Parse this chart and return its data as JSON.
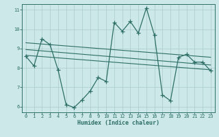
{
  "bg_color": "#cce8e8",
  "line_color": "#2d6e65",
  "grid_color": "#aacccc",
  "xlabel": "Humidex (Indice chaleur)",
  "xlim": [
    -0.5,
    23.5
  ],
  "ylim": [
    5.7,
    11.3
  ],
  "yticks": [
    6,
    7,
    8,
    9,
    10,
    11
  ],
  "xticks": [
    0,
    1,
    2,
    3,
    4,
    5,
    6,
    7,
    8,
    9,
    10,
    11,
    12,
    13,
    14,
    15,
    16,
    17,
    18,
    19,
    20,
    21,
    22,
    23
  ],
  "series1_x": [
    0,
    1,
    2,
    3,
    4,
    5,
    6,
    7,
    8,
    9,
    10,
    11,
    12,
    13,
    14,
    15,
    16,
    17,
    18,
    19,
    20,
    21,
    22,
    23
  ],
  "series1_y": [
    8.6,
    8.1,
    9.5,
    9.2,
    7.9,
    6.1,
    5.95,
    6.35,
    6.8,
    7.5,
    7.3,
    10.35,
    9.9,
    10.4,
    9.8,
    11.1,
    9.7,
    6.6,
    6.3,
    8.55,
    8.7,
    8.3,
    8.3,
    7.85
  ],
  "series2_x": [
    0,
    23
  ],
  "series2_y": [
    9.3,
    8.55
  ],
  "series3_x": [
    0,
    23
  ],
  "series3_y": [
    8.95,
    8.15
  ],
  "series4_x": [
    0,
    23
  ],
  "series4_y": [
    8.65,
    7.9
  ]
}
